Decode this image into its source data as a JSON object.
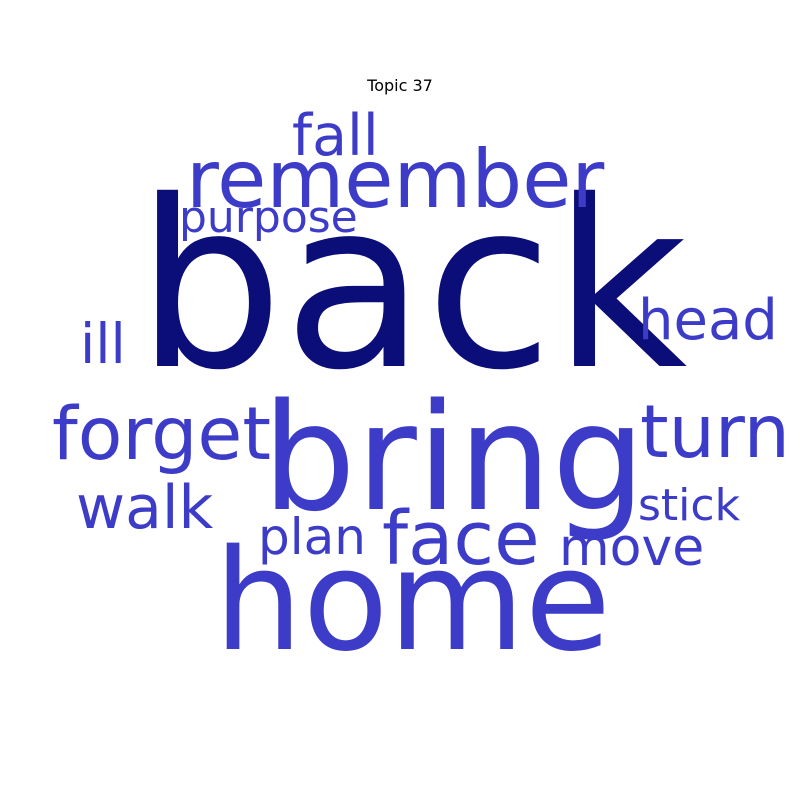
{
  "title": "Topic 37",
  "colors": {
    "primary": "#0b0d78",
    "secondary": "#3c3cc8",
    "background": "#ffffff"
  },
  "words": [
    {
      "id": "back",
      "text": "back",
      "rank": 1
    },
    {
      "id": "bring",
      "text": "bring",
      "rank": 2
    },
    {
      "id": "home",
      "text": "home",
      "rank": 3
    },
    {
      "id": "remember",
      "text": "remember",
      "rank": 4
    },
    {
      "id": "forget",
      "text": "forget",
      "rank": 5
    },
    {
      "id": "turn",
      "text": "turn",
      "rank": 6
    },
    {
      "id": "face",
      "text": "face",
      "rank": 7
    },
    {
      "id": "fall",
      "text": "fall",
      "rank": 8
    },
    {
      "id": "walk",
      "text": "walk",
      "rank": 9
    },
    {
      "id": "head",
      "text": "head",
      "rank": 10
    },
    {
      "id": "move",
      "text": "move",
      "rank": 11
    },
    {
      "id": "plan",
      "text": "plan",
      "rank": 12
    },
    {
      "id": "ill",
      "text": "ill",
      "rank": 13
    },
    {
      "id": "purpose",
      "text": "purpose",
      "rank": 14
    },
    {
      "id": "stick",
      "text": "stick",
      "rank": 15
    }
  ]
}
